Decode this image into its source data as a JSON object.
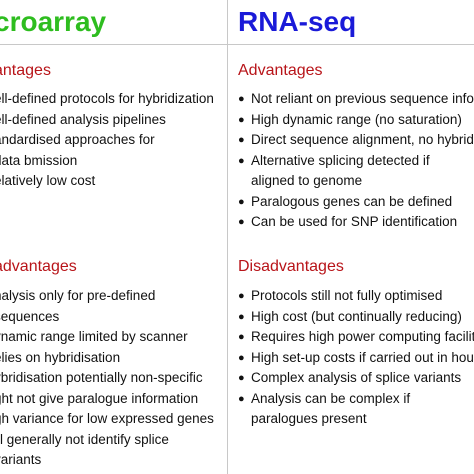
{
  "left": {
    "title": "croarray",
    "advantages_heading": "antages",
    "advantages": [
      "ell-defined protocols for hybridization",
      "ell-defined analysis pipelines",
      "andardised approaches for data bmission",
      "elatively low cost"
    ],
    "disadvantages_heading": "advantages",
    "disadvantages": [
      "nalysis only for pre-defined sequences",
      "ynamic range limited by scanner",
      "elies on hybridisation",
      "ybridisation potentially non-specific",
      "ght not give paralogue information",
      "gh variance for low expressed genes",
      "ill generally not identify splice variants"
    ]
  },
  "right": {
    "title": "RNA-seq",
    "advantages_heading": "Advantages",
    "advantages": [
      "Not reliant on previous sequence informa",
      "High dynamic range (no saturation)",
      "Direct sequence alignment, no hybridiza",
      "Alternative splicing detected if aligned to genome",
      "Paralogous genes can be defined",
      "Can be used for SNP identification"
    ],
    "disadvantages_heading": "Disadvantages",
    "disadvantages": [
      "Protocols still not fully optimised",
      "High cost (but continually reducing)",
      "Requires high power computing facilities",
      "High set-up costs if carried out in housed",
      "Complex analysis of splice variants",
      "Analysis can be complex if paralogues present"
    ]
  },
  "colors": {
    "microarray_title": "#2ebd1f",
    "rnaseq_title": "#1a1ad8",
    "section_heading": "#b81419"
  }
}
